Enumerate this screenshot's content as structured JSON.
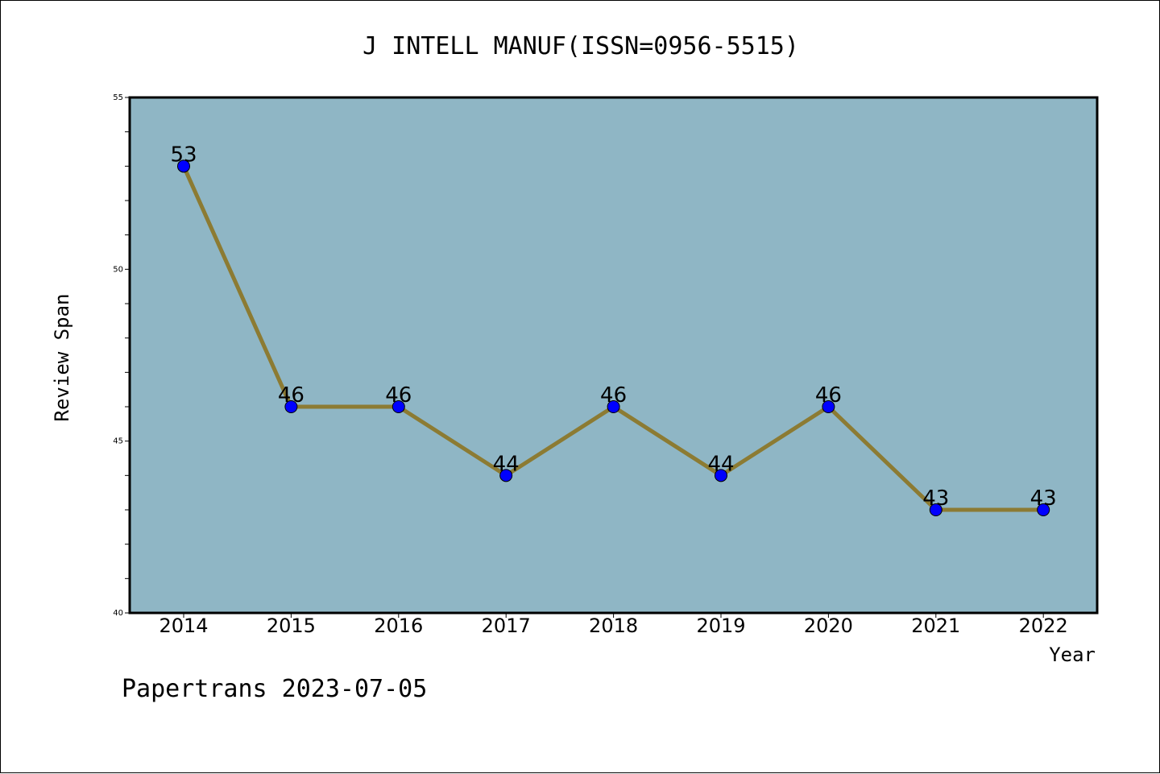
{
  "chart_data": {
    "type": "line",
    "title": "J INTELL MANUF(ISSN=0956-5515)",
    "xlabel": "Year",
    "ylabel": "Review Span",
    "categories": [
      "2014",
      "2015",
      "2016",
      "2017",
      "2018",
      "2019",
      "2020",
      "2021",
      "2022"
    ],
    "series": [
      {
        "values": [
          53,
          46,
          46,
          44,
          46,
          44,
          46,
          43,
          43
        ]
      }
    ],
    "data_labels": [
      "53",
      "46",
      "46",
      "44",
      "46",
      "44",
      "46",
      "43",
      "43"
    ],
    "yticks": [
      "40",
      "45",
      "50",
      "55"
    ],
    "ylim": [
      40,
      55
    ],
    "grid": false,
    "colors": {
      "plot_background": "#8fb6c5",
      "line": "#8c7b33",
      "marker": "#0000ff"
    }
  },
  "footer": "Papertrans 2023-07-05"
}
